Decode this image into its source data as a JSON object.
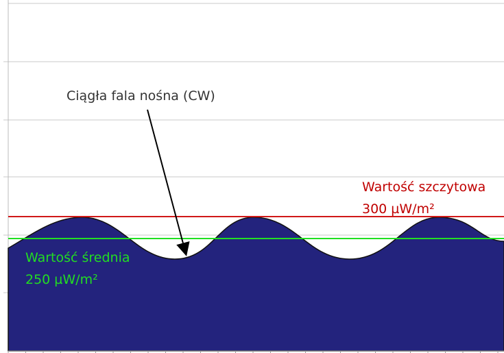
{
  "annotation": {
    "label": "Ciągła fala nośna (CW)"
  },
  "peak": {
    "label": "Wartość szczytowa",
    "value": "300 µW/m²"
  },
  "average": {
    "label": "Wartość średnia",
    "value": "250 µW/m²"
  }
}
